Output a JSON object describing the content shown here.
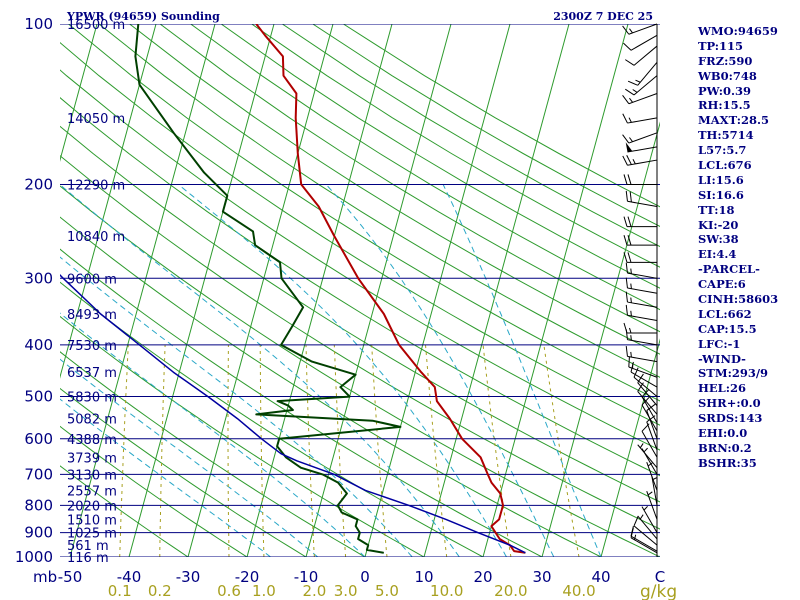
{
  "header": {
    "station": "YPWR (94659) Sounding",
    "time": "2300Z  7 DEC 25"
  },
  "indices": [
    "WMO:94659",
    "TP:115",
    "FRZ:590",
    "WB0:748",
    "PW:0.39",
    "RH:15.5",
    "MAXT:28.5",
    "TH:5714",
    "L57:5.7",
    "LCL:676",
    "LI:15.6",
    "SI:16.6",
    "TT:18",
    "KI:-20",
    "SW:38",
    "EI:4.4",
    "-PARCEL-",
    "CAPE:6",
    "CINH:58603",
    "LCL:662",
    "CAP:15.5",
    "LFC:-1",
    "-WIND-",
    "STM:293/9",
    "HEL:26",
    "SHR+:0.0",
    "SRDS:143",
    "EHI:0.0",
    "BRN:0.2",
    "BSHR:35"
  ],
  "colors": {
    "isobar": "#000080",
    "isotherm": "#2e9b2e",
    "dry_adiabat": "#2e9b2e",
    "moist_adiabat": "#2aa8c8",
    "mixing_ratio": "#a8a020",
    "temperature": "#b00000",
    "dewpoint": "#004000",
    "parcel": "#0000a0",
    "barb": "#000000"
  },
  "chart_data": {
    "type": "line",
    "diagram": "skew-T log-P",
    "pressure_axis": {
      "ticks": [
        "100",
        "200",
        "300",
        "400",
        "500",
        "600",
        "700",
        "800",
        "900",
        "1000"
      ],
      "unit": "mb",
      "range": [
        100,
        1000
      ],
      "scale": "log"
    },
    "temperature_axis": {
      "ticks": [
        "-50",
        "-40",
        "-30",
        "-20",
        "-10",
        "0",
        "10",
        "20",
        "30",
        "40"
      ],
      "end_label": "C",
      "range": [
        -50,
        50
      ]
    },
    "mixing_ratio_axis": {
      "ticks": [
        "0.1",
        "0.2",
        "0.6",
        "1.0",
        "2.0",
        "3.0",
        "5.0",
        "10.0",
        "20.0",
        "40.0"
      ],
      "unit": "g/kg"
    },
    "height_labels": [
      {
        "p": 100,
        "label": "16500 m"
      },
      {
        "p": 150,
        "label": "14050 m"
      },
      {
        "p": 200,
        "label": "12290 m"
      },
      {
        "p": 250,
        "label": "10840 m"
      },
      {
        "p": 300,
        "label": "9600 m"
      },
      {
        "p": 350,
        "label": "8493 m"
      },
      {
        "p": 400,
        "label": "7530 m"
      },
      {
        "p": 450,
        "label": "6537 m"
      },
      {
        "p": 500,
        "label": "5830 m"
      },
      {
        "p": 550,
        "label": "5082 m"
      },
      {
        "p": 600,
        "label": "4388 m"
      },
      {
        "p": 650,
        "label": "3739 m"
      },
      {
        "p": 700,
        "label": "3130 m"
      },
      {
        "p": 750,
        "label": "2557 m"
      },
      {
        "p": 800,
        "label": "2020 m"
      },
      {
        "p": 850,
        "label": "1510 m"
      },
      {
        "p": 900,
        "label": "1025 m"
      },
      {
        "p": 950,
        "label": "561 m"
      },
      {
        "p": 1000,
        "label": "116 m"
      }
    ],
    "series": [
      {
        "kind": "temperature",
        "points": [
          [
            982,
            27
          ],
          [
            975,
            25
          ],
          [
            950,
            24
          ],
          [
            925,
            22
          ],
          [
            900,
            21
          ],
          [
            875,
            20
          ],
          [
            850,
            21
          ],
          [
            800,
            21
          ],
          [
            760,
            20
          ],
          [
            725,
            18
          ],
          [
            700,
            17
          ],
          [
            650,
            15
          ],
          [
            600,
            11
          ],
          [
            550,
            8
          ],
          [
            510,
            5
          ],
          [
            480,
            4
          ],
          [
            450,
            1
          ],
          [
            400,
            -4
          ],
          [
            350,
            -8
          ],
          [
            300,
            -14
          ],
          [
            250,
            -20
          ],
          [
            220,
            -24
          ],
          [
            200,
            -28
          ],
          [
            175,
            -30
          ],
          [
            150,
            -32
          ],
          [
            135,
            -33
          ],
          [
            125,
            -36
          ],
          [
            115,
            -37
          ],
          [
            105,
            -41
          ],
          [
            100,
            -43
          ]
        ]
      },
      {
        "kind": "dewpoint",
        "points": [
          [
            982,
            3
          ],
          [
            970,
            0
          ],
          [
            950,
            0
          ],
          [
            925,
            -2
          ],
          [
            900,
            -2
          ],
          [
            875,
            -3
          ],
          [
            850,
            -3
          ],
          [
            825,
            -6
          ],
          [
            800,
            -7
          ],
          [
            760,
            -6
          ],
          [
            725,
            -8
          ],
          [
            700,
            -11
          ],
          [
            680,
            -15
          ],
          [
            650,
            -18
          ],
          [
            620,
            -20
          ],
          [
            600,
            -20
          ],
          [
            570,
            0
          ],
          [
            555,
            -5
          ],
          [
            540,
            -25
          ],
          [
            530,
            -19
          ],
          [
            520,
            -20
          ],
          [
            510,
            -22
          ],
          [
            500,
            -10
          ],
          [
            480,
            -12
          ],
          [
            455,
            -10
          ],
          [
            430,
            -18
          ],
          [
            400,
            -24
          ],
          [
            370,
            -23
          ],
          [
            340,
            -22
          ],
          [
            300,
            -27
          ],
          [
            280,
            -28
          ],
          [
            260,
            -33
          ],
          [
            245,
            -34
          ],
          [
            225,
            -40
          ],
          [
            210,
            -40
          ],
          [
            190,
            -45
          ],
          [
            160,
            -52
          ],
          [
            130,
            -60
          ],
          [
            115,
            -62
          ],
          [
            100,
            -63
          ]
        ]
      },
      {
        "kind": "parcel",
        "points": [
          [
            982,
            27
          ],
          [
            950,
            24
          ],
          [
            900,
            18
          ],
          [
            850,
            12
          ],
          [
            800,
            5
          ],
          [
            750,
            -3
          ],
          [
            700,
            -9
          ],
          [
            660,
            -16
          ],
          [
            640,
            -19
          ],
          [
            600,
            -23
          ],
          [
            550,
            -28
          ],
          [
            500,
            -34
          ],
          [
            450,
            -41
          ],
          [
            400,
            -48
          ],
          [
            350,
            -56
          ],
          [
            300,
            -64
          ],
          [
            250,
            -73
          ],
          [
            200,
            -83
          ],
          [
            150,
            -96
          ],
          [
            125,
            -104
          ]
        ]
      }
    ],
    "wind_barbs": [
      [
        100,
        250,
        15
      ],
      [
        105,
        240,
        10
      ],
      [
        110,
        230,
        10
      ],
      [
        118,
        220,
        15
      ],
      [
        125,
        230,
        15
      ],
      [
        135,
        250,
        15
      ],
      [
        150,
        260,
        15
      ],
      [
        160,
        250,
        15
      ],
      [
        170,
        260,
        50
      ],
      [
        180,
        260,
        25
      ],
      [
        200,
        270,
        20
      ],
      [
        220,
        280,
        20
      ],
      [
        240,
        270,
        20
      ],
      [
        260,
        270,
        20
      ],
      [
        280,
        270,
        20
      ],
      [
        300,
        280,
        15
      ],
      [
        320,
        280,
        15
      ],
      [
        340,
        280,
        15
      ],
      [
        360,
        280,
        15
      ],
      [
        380,
        270,
        15
      ],
      [
        400,
        280,
        15
      ],
      [
        430,
        280,
        15
      ],
      [
        460,
        290,
        15
      ],
      [
        480,
        300,
        10
      ],
      [
        500,
        310,
        10
      ],
      [
        520,
        320,
        10
      ],
      [
        540,
        320,
        10
      ],
      [
        560,
        330,
        10
      ],
      [
        580,
        330,
        10
      ],
      [
        600,
        340,
        10
      ],
      [
        630,
        340,
        10
      ],
      [
        650,
        330,
        10
      ],
      [
        680,
        320,
        5
      ],
      [
        700,
        330,
        5
      ],
      [
        750,
        340,
        5
      ],
      [
        800,
        350,
        5
      ],
      [
        850,
        340,
        5
      ],
      [
        900,
        330,
        5
      ],
      [
        925,
        320,
        5
      ],
      [
        950,
        310,
        10
      ],
      [
        975,
        300,
        10
      ],
      [
        982,
        300,
        15
      ]
    ]
  }
}
